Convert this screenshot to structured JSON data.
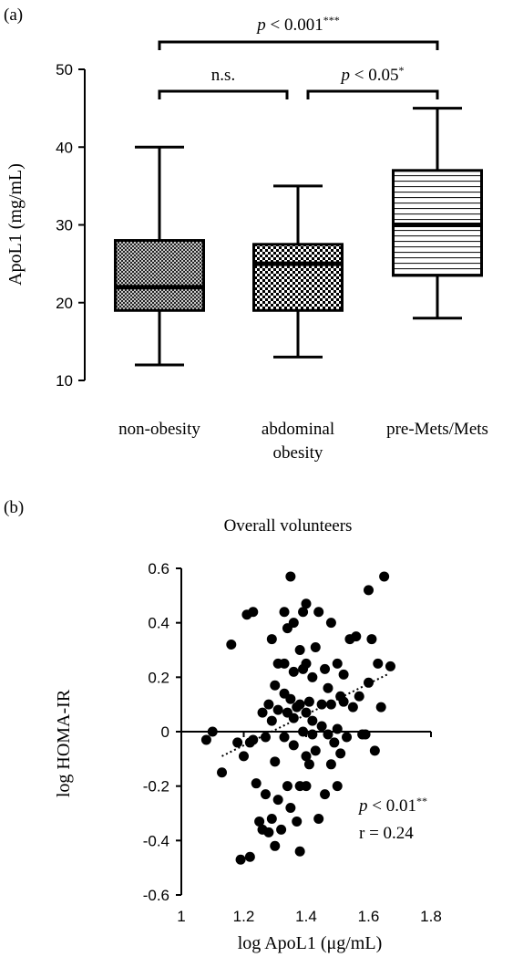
{
  "panel_a_label": "(a)",
  "panel_b_label": "(b)",
  "chart_data": [
    {
      "type": "box",
      "title": "",
      "xlabel": "",
      "ylabel": "ApoL1 (mg/mL)",
      "ylim": [
        10,
        50
      ],
      "yticks": [
        "10",
        "20",
        "30",
        "40",
        "50"
      ],
      "categories": [
        {
          "line1": "non-obesity",
          "line2": ""
        },
        {
          "line1": "abdominal",
          "line2": "obesity"
        },
        {
          "line1": "pre-Mets/Mets",
          "line2": ""
        }
      ],
      "boxes": [
        {
          "min": 12,
          "q1": 19,
          "median": 22,
          "q3": 28,
          "max": 40,
          "pattern": "crosshatch"
        },
        {
          "min": 13,
          "q1": 19,
          "median": 25,
          "q3": 27.5,
          "max": 35,
          "pattern": "checker"
        },
        {
          "min": 18,
          "q1": 23.5,
          "median": 30,
          "q3": 37,
          "max": 45,
          "pattern": "horizontal-lines"
        }
      ],
      "annotations": [
        {
          "from": 0,
          "to": 2,
          "italic": "p",
          "text": " < 0.001",
          "stars": "***"
        },
        {
          "from": 0,
          "to": 1,
          "italic": "",
          "text": "n.s.",
          "stars": ""
        },
        {
          "from": 1,
          "to": 2,
          "italic": "p",
          "text": " < 0.05",
          "stars": "*"
        }
      ]
    },
    {
      "type": "scatter",
      "title": "Overall volunteers",
      "xlabel": "log ApoL1 (μg/mL)",
      "ylabel": "log HOMA-IR",
      "xlim": [
        1,
        1.8
      ],
      "ylim": [
        -0.6,
        0.6
      ],
      "xticks": [
        "1",
        "1.2",
        "1.4",
        "1.6",
        "1.8"
      ],
      "yticks": [
        "0.6",
        "0.4",
        "0.2",
        "0",
        "-0.2",
        "-0.4",
        "-0.6"
      ],
      "stat_p_italic": "p",
      "stat_p_text": " < 0.01",
      "stat_p_stars": "**",
      "stat_r": "r = 0.24",
      "trendline": {
        "x1": 1.13,
        "y1": -0.09,
        "x2": 1.66,
        "y2": 0.21
      },
      "points": [
        [
          1.08,
          -0.03
        ],
        [
          1.1,
          0.0
        ],
        [
          1.13,
          -0.15
        ],
        [
          1.16,
          0.32
        ],
        [
          1.18,
          -0.04
        ],
        [
          1.19,
          -0.47
        ],
        [
          1.2,
          -0.09
        ],
        [
          1.21,
          0.43
        ],
        [
          1.22,
          -0.46
        ],
        [
          1.23,
          0.44
        ],
        [
          1.23,
          -0.03
        ],
        [
          1.22,
          -0.04
        ],
        [
          1.24,
          -0.19
        ],
        [
          1.25,
          -0.33
        ],
        [
          1.26,
          0.07
        ],
        [
          1.26,
          -0.36
        ],
        [
          1.27,
          -0.23
        ],
        [
          1.27,
          -0.02
        ],
        [
          1.28,
          0.1
        ],
        [
          1.28,
          -0.37
        ],
        [
          1.29,
          0.34
        ],
        [
          1.29,
          0.04
        ],
        [
          1.29,
          -0.32
        ],
        [
          1.3,
          0.17
        ],
        [
          1.3,
          -0.11
        ],
        [
          1.3,
          -0.42
        ],
        [
          1.31,
          0.25
        ],
        [
          1.31,
          0.08
        ],
        [
          1.31,
          -0.25
        ],
        [
          1.32,
          -0.36
        ],
        [
          1.33,
          0.44
        ],
        [
          1.33,
          0.25
        ],
        [
          1.33,
          0.14
        ],
        [
          1.33,
          -0.02
        ],
        [
          1.34,
          0.38
        ],
        [
          1.34,
          0.07
        ],
        [
          1.34,
          -0.2
        ],
        [
          1.35,
          0.57
        ],
        [
          1.35,
          0.12
        ],
        [
          1.35,
          -0.28
        ],
        [
          1.36,
          0.4
        ],
        [
          1.36,
          0.22
        ],
        [
          1.36,
          0.05
        ],
        [
          1.36,
          -0.05
        ],
        [
          1.37,
          -0.33
        ],
        [
          1.37,
          0.09
        ],
        [
          1.38,
          0.3
        ],
        [
          1.38,
          0.1
        ],
        [
          1.38,
          -0.2
        ],
        [
          1.38,
          -0.44
        ],
        [
          1.39,
          0.44
        ],
        [
          1.39,
          0.23
        ],
        [
          1.39,
          0.0
        ],
        [
          1.4,
          0.47
        ],
        [
          1.4,
          0.25
        ],
        [
          1.4,
          0.07
        ],
        [
          1.4,
          -0.09
        ],
        [
          1.4,
          -0.2
        ],
        [
          1.41,
          0.11
        ],
        [
          1.41,
          -0.12
        ],
        [
          1.42,
          0.2
        ],
        [
          1.42,
          0.04
        ],
        [
          1.42,
          -0.01
        ],
        [
          1.43,
          0.31
        ],
        [
          1.43,
          -0.07
        ],
        [
          1.44,
          0.44
        ],
        [
          1.44,
          -0.32
        ],
        [
          1.45,
          0.1
        ],
        [
          1.45,
          0.02
        ],
        [
          1.46,
          0.23
        ],
        [
          1.46,
          -0.23
        ],
        [
          1.47,
          0.16
        ],
        [
          1.47,
          -0.01
        ],
        [
          1.48,
          0.4
        ],
        [
          1.48,
          0.1
        ],
        [
          1.48,
          -0.12
        ],
        [
          1.49,
          -0.04
        ],
        [
          1.5,
          0.25
        ],
        [
          1.5,
          0.01
        ],
        [
          1.5,
          -0.2
        ],
        [
          1.51,
          0.13
        ],
        [
          1.51,
          -0.08
        ],
        [
          1.52,
          0.21
        ],
        [
          1.52,
          0.11
        ],
        [
          1.53,
          -0.02
        ],
        [
          1.54,
          0.34
        ],
        [
          1.55,
          0.09
        ],
        [
          1.56,
          0.35
        ],
        [
          1.57,
          0.13
        ],
        [
          1.58,
          -0.01
        ],
        [
          1.59,
          -0.01
        ],
        [
          1.6,
          0.52
        ],
        [
          1.6,
          0.18
        ],
        [
          1.61,
          0.34
        ],
        [
          1.62,
          -0.07
        ],
        [
          1.63,
          0.25
        ],
        [
          1.64,
          0.09
        ],
        [
          1.65,
          0.57
        ],
        [
          1.67,
          0.24
        ]
      ]
    }
  ]
}
